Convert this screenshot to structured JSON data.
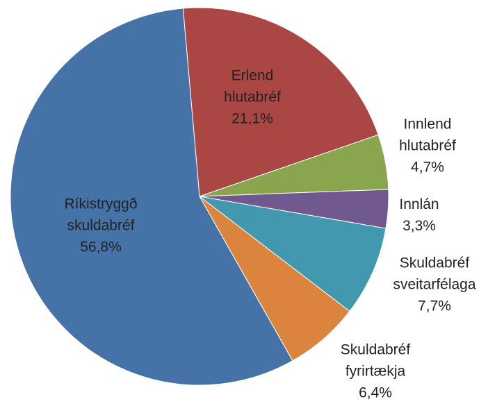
{
  "chart_data": {
    "type": "pie",
    "categories": [
      "Erlend hlutabréf",
      "Innlend hlutabréf",
      "Innlán",
      "Skuldabréf sveitarfélaga",
      "Skuldabréf fyrirtækja",
      "Ríkistryggð skuldabréf"
    ],
    "values": [
      21.1,
      4.7,
      3.3,
      7.7,
      6.4,
      56.8
    ],
    "value_labels": [
      "21,1%",
      "4,7%",
      "3,3%",
      "7,7%",
      "6,4%",
      "56,8%"
    ],
    "colors": [
      "#aa4643",
      "#89a54e",
      "#71588f",
      "#4198af",
      "#db843d",
      "#4572a7"
    ]
  }
}
